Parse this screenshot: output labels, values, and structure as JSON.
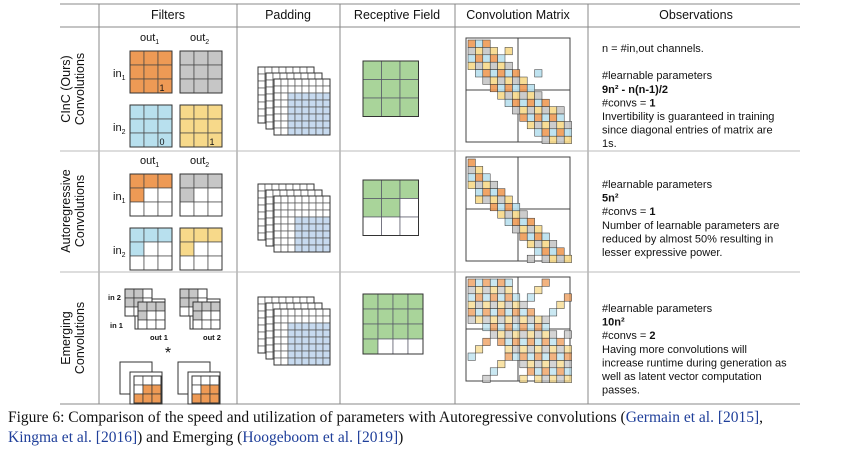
{
  "headers": [
    "Filters",
    "Padding",
    "Receptive Field",
    "Convolution Matrix",
    "Observations"
  ],
  "rows": [
    {
      "label_line1": "CInC (Ours)",
      "label_line2": "Convolutions",
      "out1": "out",
      "out2": "out",
      "in1": "in",
      "in2": "in",
      "cell_val_a": "1",
      "cell_val_b": "0",
      "cell_val_c": "1",
      "obs": [
        "n = #in,out channels.",
        "",
        "#learnable parameters",
        "9n² - n(n-1)/2",
        "#convs = 1",
        "Invertibility is guaranteed in training",
        "since diagonal entries of matrix are",
        "1s."
      ]
    },
    {
      "label_line1": "Autoregressive",
      "label_line2": "Convolutions",
      "out1": "out",
      "out2": "out",
      "in1": "in",
      "in2": "in",
      "obs": [
        "#learnable parameters",
        "5n²",
        "#convs = 1",
        "Number of learnable parameters are",
        "reduced by almost 50% resulting in",
        "lesser expressive power."
      ]
    },
    {
      "label_line1": "Emerging",
      "label_line2": "Convolutions",
      "in2": "in 2",
      "in1": "in 1",
      "out1": "out 1",
      "out2": "out 2",
      "star": "*",
      "obs": [
        "#learnable parameters",
        "10n²",
        "#convs = 2",
        "Having more convolutions will",
        "increase runtime during generation as",
        "well as latent vector computation",
        "passes."
      ]
    }
  ],
  "caption": {
    "lead": "Figure 6: Comparison of the speed and utilization of parameters with Autoregressive convolutions (",
    "ref1": "Germain et al. [2015]",
    "sep": ",",
    "ref2": "Kingma et al. [2016]",
    "mid": ") and Emerging (",
    "ref3": "Hoogeboom et al. [2019]",
    "tail": ")"
  },
  "colors": {
    "orange": "#ee9a55",
    "gray": "#c6c6c6",
    "blue": "#b8e0ee",
    "yellow": "#f7d98a",
    "green": "#a9d49a",
    "padblue": "#c7daef",
    "line": "#555555"
  }
}
